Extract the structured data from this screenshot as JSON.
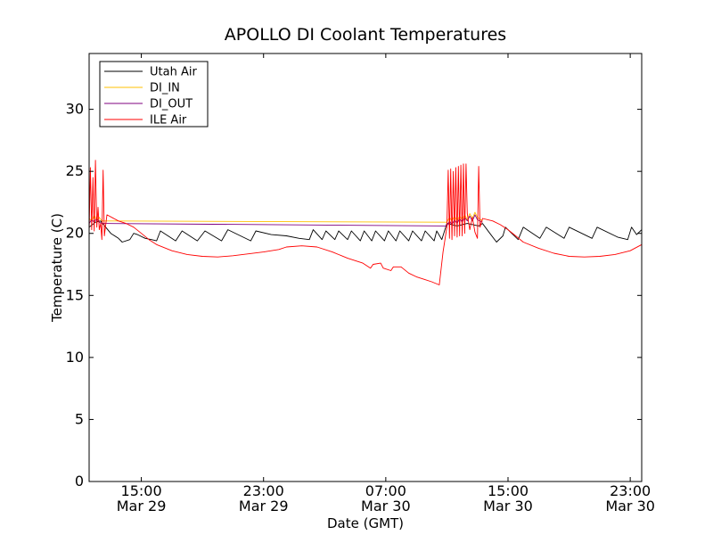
{
  "chart_data": {
    "type": "line",
    "title": "APOLLO DI Coolant Temperatures",
    "xlabel": "Date (GMT)",
    "ylabel": "Temperature (C)",
    "xlim": [
      "2024-03-29T11:35",
      "2024-03-30T23:45"
    ],
    "ylim": [
      0,
      34.5
    ],
    "yticks": [
      0,
      5,
      10,
      15,
      20,
      25,
      30
    ],
    "xticks": [
      {
        "t": "2024-03-29T15:00",
        "time": "15:00",
        "date": "Mar 29"
      },
      {
        "t": "2024-03-29T23:00",
        "time": "23:00",
        "date": "Mar 29"
      },
      {
        "t": "2024-03-30T07:00",
        "time": "07:00",
        "date": "Mar 30"
      },
      {
        "t": "2024-03-30T15:00",
        "time": "15:00",
        "date": "Mar 30"
      },
      {
        "t": "2024-03-30T23:00",
        "time": "23:00",
        "date": "Mar 30"
      }
    ],
    "grid": false,
    "legend_position": "top-left",
    "series": [
      {
        "name": "Utah Air",
        "color": "#000000",
        "points": [
          [
            "2024-03-29T11:35",
            20.5
          ],
          [
            "2024-03-29T12:00",
            20.9
          ],
          [
            "2024-03-29T12:20",
            21.0
          ],
          [
            "2024-03-29T12:40",
            20.5
          ],
          [
            "2024-03-29T13:00",
            20.0
          ],
          [
            "2024-03-29T13:30",
            19.6
          ],
          [
            "2024-03-29T13:45",
            19.3
          ],
          [
            "2024-03-29T14:15",
            19.5
          ],
          [
            "2024-03-29T14:30",
            20.0
          ],
          [
            "2024-03-29T14:45",
            19.9
          ],
          [
            "2024-03-29T15:15",
            19.6
          ],
          [
            "2024-03-29T15:40",
            19.5
          ],
          [
            "2024-03-29T16:00",
            19.4
          ],
          [
            "2024-03-29T16:15",
            20.2
          ],
          [
            "2024-03-29T17:15",
            19.4
          ],
          [
            "2024-03-29T17:40",
            20.2
          ],
          [
            "2024-03-29T18:40",
            19.4
          ],
          [
            "2024-03-29T19:10",
            20.2
          ],
          [
            "2024-03-29T20:15",
            19.4
          ],
          [
            "2024-03-29T20:40",
            20.3
          ],
          [
            "2024-03-29T22:10",
            19.4
          ],
          [
            "2024-03-29T22:30",
            20.2
          ],
          [
            "2024-03-29T23:30",
            19.9
          ],
          [
            "2024-03-30T00:30",
            19.8
          ],
          [
            "2024-03-30T01:20",
            19.6
          ],
          [
            "2024-03-30T02:00",
            19.5
          ],
          [
            "2024-03-30T02:15",
            20.3
          ],
          [
            "2024-03-30T02:50",
            19.5
          ],
          [
            "2024-03-30T03:05",
            20.2
          ],
          [
            "2024-03-30T03:40",
            19.5
          ],
          [
            "2024-03-30T03:55",
            20.2
          ],
          [
            "2024-03-30T04:30",
            19.5
          ],
          [
            "2024-03-30T04:45",
            20.2
          ],
          [
            "2024-03-30T05:20",
            19.4
          ],
          [
            "2024-03-30T05:35",
            20.2
          ],
          [
            "2024-03-30T06:05",
            19.4
          ],
          [
            "2024-03-30T06:20",
            20.2
          ],
          [
            "2024-03-30T06:55",
            19.4
          ],
          [
            "2024-03-30T07:10",
            20.2
          ],
          [
            "2024-03-30T07:40",
            19.4
          ],
          [
            "2024-03-30T07:55",
            20.2
          ],
          [
            "2024-03-30T08:30",
            19.4
          ],
          [
            "2024-03-30T08:45",
            20.2
          ],
          [
            "2024-03-30T09:20",
            19.4
          ],
          [
            "2024-03-30T09:35",
            20.2
          ],
          [
            "2024-03-30T10:10",
            19.4
          ],
          [
            "2024-03-30T10:20",
            20.2
          ],
          [
            "2024-03-30T10:40",
            19.5
          ],
          [
            "2024-03-30T11:00",
            20.8
          ],
          [
            "2024-03-30T11:40",
            20.6
          ],
          [
            "2024-03-30T12:20",
            20.8
          ],
          [
            "2024-03-30T13:05",
            20.6
          ],
          [
            "2024-03-30T13:20",
            20.8
          ],
          [
            "2024-03-30T13:45",
            20.1
          ],
          [
            "2024-03-30T14:15",
            19.3
          ],
          [
            "2024-03-30T14:40",
            19.8
          ],
          [
            "2024-03-30T14:50",
            20.5
          ],
          [
            "2024-03-30T15:40",
            19.5
          ],
          [
            "2024-03-30T16:00",
            20.5
          ],
          [
            "2024-03-30T17:05",
            19.6
          ],
          [
            "2024-03-30T17:30",
            20.5
          ],
          [
            "2024-03-30T18:40",
            19.6
          ],
          [
            "2024-03-30T19:00",
            20.5
          ],
          [
            "2024-03-30T20:30",
            19.6
          ],
          [
            "2024-03-30T20:50",
            20.5
          ],
          [
            "2024-03-30T22:10",
            19.7
          ],
          [
            "2024-03-30T22:50",
            19.5
          ],
          [
            "2024-03-30T23:05",
            20.5
          ],
          [
            "2024-03-30T23:25",
            19.9
          ],
          [
            "2024-03-30T23:45",
            20.3
          ]
        ]
      },
      {
        "name": "DI_IN",
        "color": "#ffc000",
        "points": [
          [
            "2024-03-29T11:35",
            21.2
          ],
          [
            "2024-03-29T11:45",
            21.0
          ],
          [
            "2024-03-29T11:55",
            21.5
          ],
          [
            "2024-03-29T12:05",
            21.0
          ],
          [
            "2024-03-29T12:15",
            21.3
          ],
          [
            "2024-03-29T12:25",
            21.0
          ],
          [
            "2024-03-30T11:00",
            20.9
          ],
          [
            "2024-03-30T11:10",
            21.3
          ],
          [
            "2024-03-30T11:20",
            21.0
          ],
          [
            "2024-03-30T11:30",
            21.4
          ],
          [
            "2024-03-30T11:40",
            21.0
          ],
          [
            "2024-03-30T11:50",
            21.4
          ],
          [
            "2024-03-30T12:00",
            21.1
          ],
          [
            "2024-03-30T12:10",
            21.5
          ],
          [
            "2024-03-30T12:20",
            21.1
          ],
          [
            "2024-03-30T12:30",
            21.6
          ],
          [
            "2024-03-30T12:40",
            21.2
          ],
          [
            "2024-03-30T12:50",
            21.7
          ],
          [
            "2024-03-30T13:00",
            21.3
          ],
          [
            "2024-03-30T13:20",
            21.0
          ]
        ]
      },
      {
        "name": "DI_OUT",
        "color": "#7f007f",
        "points": [
          [
            "2024-03-29T11:35",
            20.8
          ],
          [
            "2024-03-29T11:45",
            21.1
          ],
          [
            "2024-03-29T11:55",
            20.9
          ],
          [
            "2024-03-29T12:05",
            21.2
          ],
          [
            "2024-03-29T12:15",
            20.9
          ],
          [
            "2024-03-29T12:25",
            20.8
          ],
          [
            "2024-03-30T11:00",
            20.6
          ],
          [
            "2024-03-30T11:10",
            21.0
          ],
          [
            "2024-03-30T11:20",
            20.7
          ],
          [
            "2024-03-30T11:30",
            21.1
          ],
          [
            "2024-03-30T11:40",
            20.8
          ],
          [
            "2024-03-30T11:50",
            21.2
          ],
          [
            "2024-03-30T12:00",
            20.9
          ],
          [
            "2024-03-30T12:10",
            21.3
          ],
          [
            "2024-03-30T12:20",
            21.0
          ],
          [
            "2024-03-30T12:30",
            21.4
          ],
          [
            "2024-03-30T12:40",
            21.0
          ],
          [
            "2024-03-30T12:50",
            21.5
          ],
          [
            "2024-03-30T13:00",
            21.1
          ],
          [
            "2024-03-30T13:20",
            20.9
          ]
        ]
      },
      {
        "name": "ILE Air",
        "color": "#ff0000",
        "points": [
          [
            "2024-03-29T11:35",
            20.0
          ],
          [
            "2024-03-29T11:40",
            25.3
          ],
          [
            "2024-03-29T11:45",
            20.3
          ],
          [
            "2024-03-29T11:50",
            24.5
          ],
          [
            "2024-03-29T11:55",
            20.2
          ],
          [
            "2024-03-29T12:00",
            25.9
          ],
          [
            "2024-03-29T12:05",
            20.5
          ],
          [
            "2024-03-29T12:10",
            22.1
          ],
          [
            "2024-03-29T12:15",
            20.3
          ],
          [
            "2024-03-29T12:20",
            20.8
          ],
          [
            "2024-03-29T12:25",
            19.5
          ],
          [
            "2024-03-29T12:30",
            25.1
          ],
          [
            "2024-03-29T12:35",
            19.8
          ],
          [
            "2024-03-29T12:45",
            21.5
          ],
          [
            "2024-03-29T13:30",
            21.0
          ],
          [
            "2024-03-29T14:00",
            20.8
          ],
          [
            "2024-03-29T14:30",
            20.5
          ],
          [
            "2024-03-29T15:00",
            20.0
          ],
          [
            "2024-03-29T15:30",
            19.5
          ],
          [
            "2024-03-29T16:00",
            19.1
          ],
          [
            "2024-03-29T17:00",
            18.6
          ],
          [
            "2024-03-29T18:00",
            18.3
          ],
          [
            "2024-03-29T19:00",
            18.15
          ],
          [
            "2024-03-29T20:00",
            18.1
          ],
          [
            "2024-03-29T21:00",
            18.2
          ],
          [
            "2024-03-29T22:00",
            18.35
          ],
          [
            "2024-03-29T23:00",
            18.5
          ],
          [
            "2024-03-30T00:00",
            18.7
          ],
          [
            "2024-03-30T00:30",
            18.9
          ],
          [
            "2024-03-30T01:30",
            19.0
          ],
          [
            "2024-03-30T02:30",
            18.9
          ],
          [
            "2024-03-30T03:30",
            18.5
          ],
          [
            "2024-03-30T04:30",
            18.0
          ],
          [
            "2024-03-30T05:30",
            17.6
          ],
          [
            "2024-03-30T06:00",
            17.2
          ],
          [
            "2024-03-30T06:10",
            17.5
          ],
          [
            "2024-03-30T06:40",
            17.6
          ],
          [
            "2024-03-30T06:50",
            17.2
          ],
          [
            "2024-03-30T07:20",
            17.0
          ],
          [
            "2024-03-30T07:30",
            17.3
          ],
          [
            "2024-03-30T08:00",
            17.3
          ],
          [
            "2024-03-30T08:30",
            16.8
          ],
          [
            "2024-03-30T09:00",
            16.5
          ],
          [
            "2024-03-30T09:30",
            16.3
          ],
          [
            "2024-03-30T10:00",
            16.1
          ],
          [
            "2024-03-30T10:30",
            15.85
          ],
          [
            "2024-03-30T10:45",
            18.5
          ],
          [
            "2024-03-30T11:00",
            20.5
          ],
          [
            "2024-03-30T11:05",
            25.1
          ],
          [
            "2024-03-30T11:10",
            19.6
          ],
          [
            "2024-03-30T11:15",
            25.2
          ],
          [
            "2024-03-30T11:20",
            19.5
          ],
          [
            "2024-03-30T11:25",
            25.0
          ],
          [
            "2024-03-30T11:30",
            19.8
          ],
          [
            "2024-03-30T11:35",
            25.3
          ],
          [
            "2024-03-30T11:40",
            19.7
          ],
          [
            "2024-03-30T11:45",
            25.4
          ],
          [
            "2024-03-30T11:50",
            19.8
          ],
          [
            "2024-03-30T11:55",
            25.5
          ],
          [
            "2024-03-30T12:00",
            19.8
          ],
          [
            "2024-03-30T12:05",
            25.6
          ],
          [
            "2024-03-30T12:10",
            20.0
          ],
          [
            "2024-03-30T12:15",
            25.6
          ],
          [
            "2024-03-30T12:20",
            21.6
          ],
          [
            "2024-03-30T12:30",
            20.3
          ],
          [
            "2024-03-30T12:40",
            21.3
          ],
          [
            "2024-03-30T12:50",
            20.1
          ],
          [
            "2024-03-30T13:00",
            19.6
          ],
          [
            "2024-03-30T13:05",
            25.4
          ],
          [
            "2024-03-30T13:10",
            20.5
          ],
          [
            "2024-03-30T13:20",
            21.2
          ],
          [
            "2024-03-30T14:00",
            21.0
          ],
          [
            "2024-03-30T14:30",
            20.7
          ],
          [
            "2024-03-30T15:00",
            20.3
          ],
          [
            "2024-03-30T15:30",
            19.8
          ],
          [
            "2024-03-30T16:00",
            19.3
          ],
          [
            "2024-03-30T17:00",
            18.8
          ],
          [
            "2024-03-30T18:00",
            18.4
          ],
          [
            "2024-03-30T19:00",
            18.15
          ],
          [
            "2024-03-30T20:00",
            18.1
          ],
          [
            "2024-03-30T21:00",
            18.15
          ],
          [
            "2024-03-30T22:00",
            18.3
          ],
          [
            "2024-03-30T23:00",
            18.6
          ],
          [
            "2024-03-30T23:45",
            19.1
          ]
        ]
      }
    ]
  }
}
